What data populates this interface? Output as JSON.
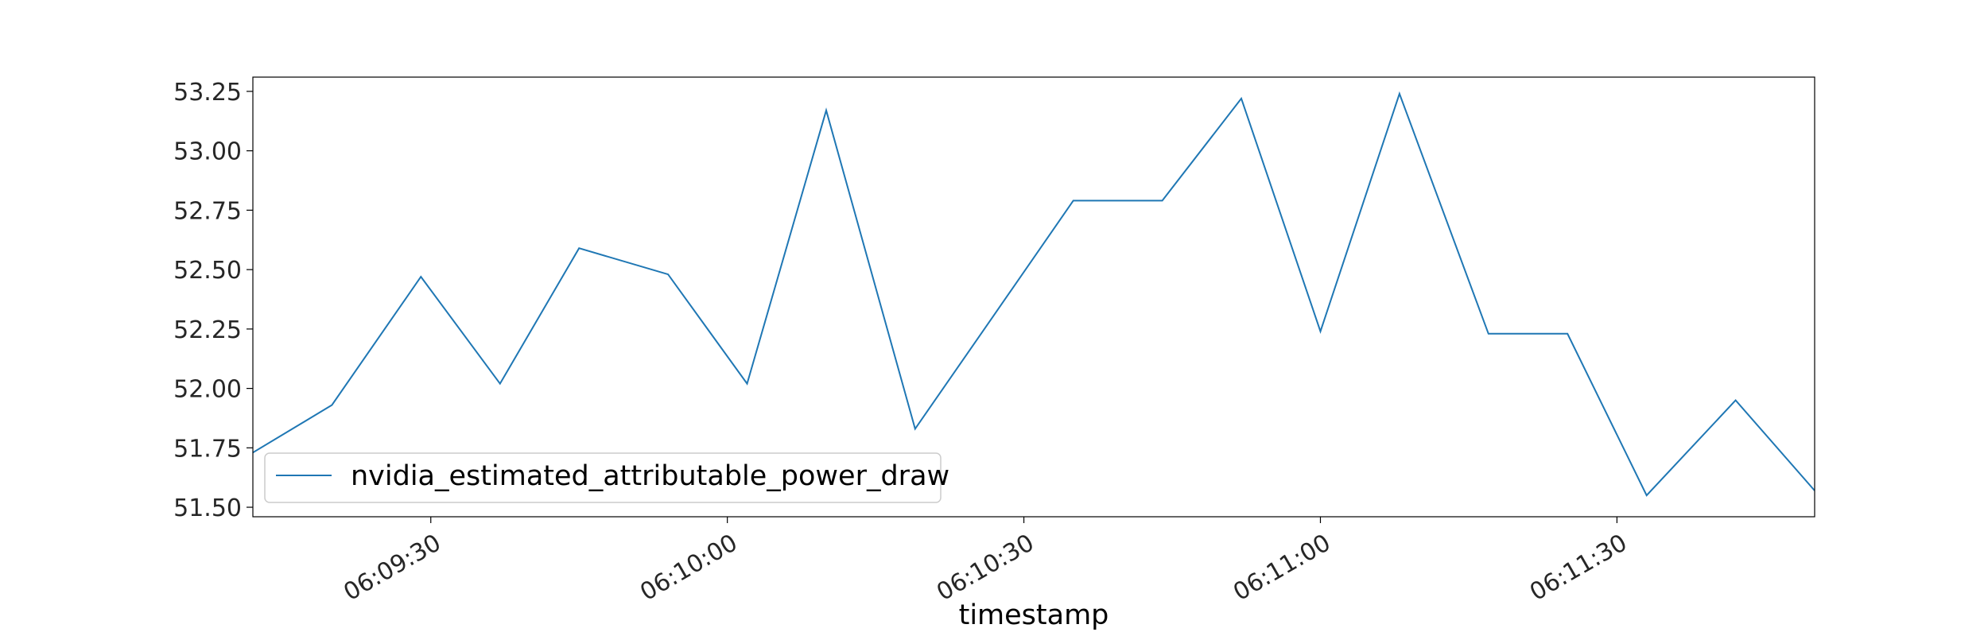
{
  "chart_data": {
    "type": "line",
    "xlabel": "timestamp",
    "ylabel": "",
    "x_unit": "time",
    "xlim": [
      "06:09:12",
      "06:11:50"
    ],
    "ylim": [
      51.46,
      53.31
    ],
    "x_ticks": [
      "06:09:30",
      "06:10:00",
      "06:10:30",
      "06:11:00",
      "06:11:30"
    ],
    "y_ticks": [
      51.5,
      51.75,
      52.0,
      52.25,
      52.5,
      52.75,
      53.0,
      53.25
    ],
    "grid": false,
    "legend_position": "lower-left",
    "series": [
      {
        "name": "nvidia_estimated_attributable_power_draw",
        "color": "#1f77b4",
        "x": [
          "06:09:12",
          "06:09:20",
          "06:09:29",
          "06:09:37",
          "06:09:45",
          "06:09:54",
          "06:10:02",
          "06:10:10",
          "06:10:19",
          "06:10:27",
          "06:10:35",
          "06:10:44",
          "06:10:52",
          "06:11:00",
          "06:11:08",
          "06:11:17",
          "06:11:25",
          "06:11:33",
          "06:11:42",
          "06:11:50"
        ],
        "y": [
          51.73,
          51.93,
          52.47,
          52.02,
          52.59,
          52.48,
          52.02,
          53.17,
          51.83,
          52.31,
          52.79,
          52.79,
          53.22,
          52.24,
          53.24,
          52.23,
          52.23,
          51.55,
          51.95,
          51.57
        ]
      }
    ]
  }
}
